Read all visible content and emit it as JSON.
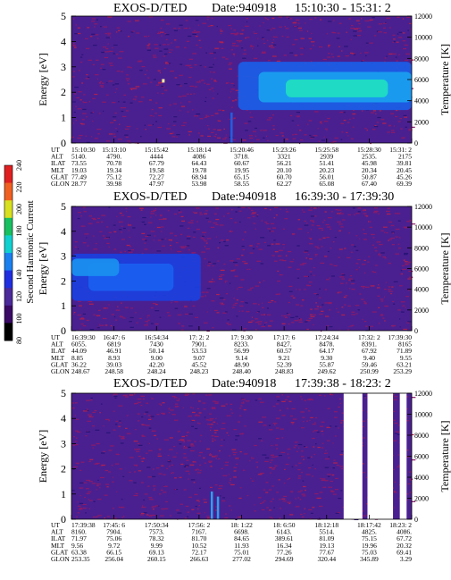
{
  "chart_data": {
    "type": "heatmap",
    "colorbar": {
      "label": "Second Harmonic Current",
      "ticks": [
        "80",
        "100",
        "120",
        "140",
        "160",
        "180",
        "200",
        "220",
        "240"
      ],
      "colors": [
        "#000000",
        "#3a0a66",
        "#4b2a9a",
        "#1f2fe0",
        "#1a80f0",
        "#10d0d0",
        "#18c060",
        "#d8e020",
        "#f06020",
        "#e02020"
      ]
    },
    "panels": [
      {
        "title": "EXOS-D/TED",
        "date": "Date:940918",
        "time": "15:10:30 - 15:31: 2",
        "ylabel": "Energy [eV]",
        "y2label": "Temperature [K]",
        "ylim": [
          0,
          5
        ],
        "y2lim": [
          0,
          12000
        ],
        "yticks": [
          "0",
          "1",
          "2",
          "3",
          "4",
          "5"
        ],
        "y2ticks": [
          "0",
          "2000",
          "4000",
          "6000",
          "8000",
          "10000",
          "12000"
        ],
        "features": [
          {
            "kind": "band",
            "x0": 0.49,
            "x1": 1.0,
            "e0": 1.3,
            "e1": 3.2,
            "color": "#1a5ee8"
          },
          {
            "kind": "band",
            "x0": 0.55,
            "x1": 1.0,
            "e0": 1.6,
            "e1": 2.8,
            "color": "#1aa0f0"
          },
          {
            "kind": "band",
            "x0": 0.63,
            "x1": 0.93,
            "e0": 1.8,
            "e1": 2.5,
            "color": "#20e0c0"
          },
          {
            "kind": "spike",
            "x": 0.47,
            "e": 1.2,
            "color": "#2060e0"
          },
          {
            "kind": "dot",
            "x": 0.27,
            "e": 2.45,
            "color": "#f0f0a0"
          }
        ],
        "rows": [
          {
            "name": "UT",
            "values": [
              "15:10:30",
              "15:13:10",
              "15:15:42",
              "15:18:14",
              "15:20:46",
              "15:23:26",
              "15:25:58",
              "15:28:30",
              "15:31: 2"
            ]
          },
          {
            "name": "ALT",
            "values": [
              "5140.",
              "4790.",
              "4444",
              "4086",
              "3718.",
              "3321",
              "2939",
              "2535.",
              "2175"
            ]
          },
          {
            "name": "ILAT",
            "values": [
              "73.55",
              "70.78",
              "67.79",
              "64.43",
              "60.67",
              "56.21",
              "51.41",
              "45.98",
              "39.81"
            ]
          },
          {
            "name": "MLT",
            "values": [
              "19.03",
              "19.34",
              "19.58",
              "19.78",
              "19.95",
              "20.10",
              "20.23",
              "20.34",
              "20.45"
            ]
          },
          {
            "name": "GLAT",
            "values": [
              "77.49",
              "75.12",
              "72.27",
              "68.94",
              "65.15",
              "60.70",
              "56.01",
              "50.87",
              "45.26"
            ]
          },
          {
            "name": "GLON",
            "values": [
              "28.77",
              "39.98",
              "47.97",
              "53.98",
              "58.55",
              "62.27",
              "65.08",
              "67.40",
              "69.39"
            ]
          }
        ]
      },
      {
        "title": "EXOS-D/TED",
        "date": "Date:940918",
        "time": "16:39:30 - 17:39:30",
        "ylabel": "Energy [eV]",
        "y2label": "Temperature [K]",
        "ylim": [
          0,
          5
        ],
        "y2lim": [
          0,
          12000
        ],
        "yticks": [
          "0",
          "1",
          "2",
          "3",
          "4",
          "5"
        ],
        "y2ticks": [
          "0",
          "2000",
          "4000",
          "6000",
          "8000",
          "10000",
          "12000"
        ],
        "features": [
          {
            "kind": "band",
            "x0": 0.0,
            "x1": 0.38,
            "e0": 1.2,
            "e1": 3.1,
            "color": "#1a40e0"
          },
          {
            "kind": "band",
            "x0": 0.05,
            "x1": 0.3,
            "e0": 1.6,
            "e1": 2.7,
            "color": "#1a60f0"
          },
          {
            "kind": "band",
            "x0": 0.0,
            "x1": 0.14,
            "e0": 2.2,
            "e1": 2.9,
            "color": "#1a90f0"
          }
        ],
        "rows": [
          {
            "name": "UT",
            "values": [
              "16:39:30",
              "16:47: 6",
              "16:54:34",
              "17: 2: 2",
              "17: 9:30",
              "17:17: 6",
              "17:24:34",
              "17:32: 2",
              "17:39:30"
            ]
          },
          {
            "name": "ALT",
            "values": [
              "6055.",
              "6819",
              "7430",
              "7901.",
              "8233.",
              "8427.",
              "8478.",
              "8391.",
              "8165"
            ]
          },
          {
            "name": "ILAT",
            "values": [
              "44.09",
              "46.91",
              "50.14",
              "53.53",
              "56.99",
              "60.57",
              "64.17",
              "67.92",
              "71.89"
            ]
          },
          {
            "name": "MLT",
            "values": [
              "8.85",
              "8.93",
              "9.00",
              "9.07",
              "9.14",
              "9.21",
              "9.30",
              "9.40",
              "9.55"
            ]
          },
          {
            "name": "GLAT",
            "values": [
              "36.22",
              "39.03",
              "42.20",
              "45.52",
              "48.90",
              "52.39",
              "55.87",
              "59.46",
              "63.21"
            ]
          },
          {
            "name": "GLON",
            "values": [
              "248.67",
              "248.58",
              "248.24",
              "248.23",
              "248.40",
              "248.83",
              "249.62",
              "250.99",
              "253.29"
            ]
          }
        ]
      },
      {
        "title": "EXOS-D/TED",
        "date": "Date:940918",
        "time": "17:39:38 - 18:23: 2",
        "ylabel": "Energy [eV]",
        "y2label": "Temperature [K]",
        "ylim": [
          0,
          5
        ],
        "y2lim": [
          0,
          12000
        ],
        "yticks": [
          "0",
          "1",
          "2",
          "3",
          "4",
          "5"
        ],
        "y2ticks": [
          "0",
          "2000",
          "4000",
          "6000",
          "8000",
          "10000",
          "12000"
        ],
        "features": [
          {
            "kind": "gap",
            "x0": 0.8,
            "x1": 0.855,
            "color": "#ffffff"
          },
          {
            "kind": "gap",
            "x0": 0.87,
            "x1": 0.945,
            "color": "#ffffff"
          },
          {
            "kind": "gap",
            "x0": 0.965,
            "x1": 0.985,
            "color": "#ffffff"
          },
          {
            "kind": "spike",
            "x": 0.412,
            "e": 1.1,
            "color": "#2aa0f0"
          },
          {
            "kind": "spike",
            "x": 0.43,
            "e": 0.9,
            "color": "#2aa0f0"
          }
        ],
        "rows": [
          {
            "name": "UT",
            "values": [
              "17:39:38",
              "17:45: 6",
              "17:50:34",
              "17:56: 2",
              "18: 1:22",
              "18: 6:50",
              "18:12:18",
              "18:17:42",
              "18:23: 2"
            ]
          },
          {
            "name": "ALT",
            "values": [
              "8160.",
              "7904.",
              "7573.",
              "7167.",
              "6698.",
              "6143.",
              "5514.",
              "4825.",
              "4086."
            ]
          },
          {
            "name": "ILAT",
            "values": [
              "71.97",
              "75.06",
              "78.32",
              "81.70",
              "84.65",
              "389.61",
              "81.09",
              "75.15",
              "67.72"
            ]
          },
          {
            "name": "MLT",
            "values": [
              "9.56",
              "9.72",
              "9.99",
              "10.52",
              "11.93",
              "16.34",
              "19.13",
              "19.96",
              "20.32"
            ]
          },
          {
            "name": "GLAT",
            "values": [
              "63.38",
              "66.15",
              "69.13",
              "72.17",
              "75.01",
              "77.26",
              "77.67",
              "75.03",
              "69.41"
            ]
          },
          {
            "name": "GLON",
            "values": [
              "253.35",
              "256.04",
              "260.15",
              "266.63",
              "277.02",
              "294.69",
              "320.44",
              "345.89",
              "3.29"
            ]
          }
        ]
      }
    ]
  }
}
